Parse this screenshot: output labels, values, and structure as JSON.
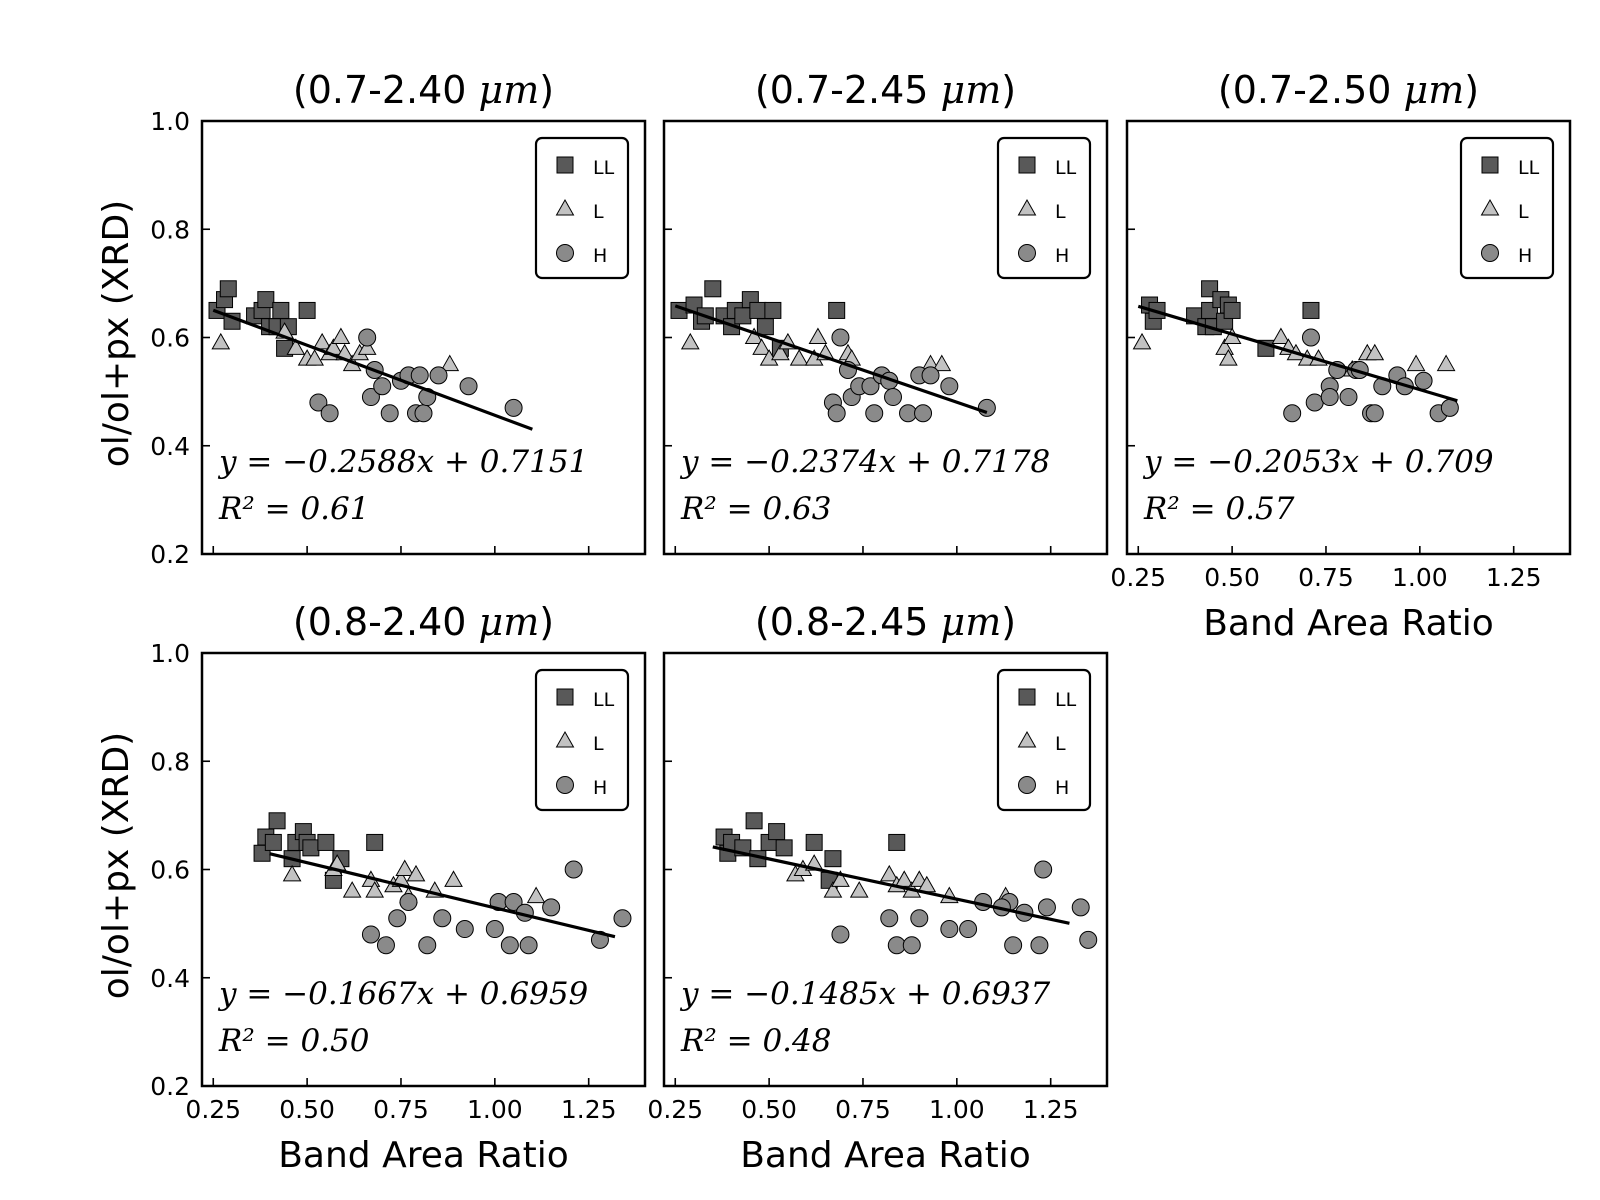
{
  "chart_data": [
    {
      "type": "scatter",
      "title": "(0.7-2.40 μm)",
      "title_range": "(0.7-2.40 ",
      "title_unit": "μm",
      "title_close": ")",
      "xlabel": "",
      "ylabel": "ol/ol+px (XRD)",
      "xlim": [
        0.22,
        1.4
      ],
      "ylim": [
        0.2,
        1.0
      ],
      "xticks": [
        0.25,
        0.5,
        0.75,
        1.0,
        1.25
      ],
      "xtick_labels": [],
      "yticks": [
        0.2,
        0.4,
        0.6,
        0.8,
        1.0
      ],
      "ytick_labels": [
        "0.2",
        "0.4",
        "0.6",
        "0.8",
        "1.0"
      ],
      "fit": {
        "slope": -0.2588,
        "intercept": 0.7151,
        "x_range": [
          0.25,
          1.1
        ]
      },
      "equation": "y = −0.2588x + 0.7151",
      "r2_label": "R² = 0.61",
      "legend": {
        "position": "top-right",
        "entries": [
          "LL",
          "L",
          "H"
        ]
      },
      "series": [
        {
          "name": "LL",
          "marker": "square",
          "color": "#595959",
          "x": [
            0.26,
            0.28,
            0.29,
            0.3,
            0.36,
            0.38,
            0.39,
            0.4,
            0.42,
            0.43,
            0.44,
            0.45,
            0.5
          ],
          "y": [
            0.65,
            0.67,
            0.69,
            0.63,
            0.64,
            0.65,
            0.67,
            0.62,
            0.62,
            0.65,
            0.58,
            0.62,
            0.65
          ]
        },
        {
          "name": "L",
          "marker": "triangle",
          "color": "#c2c2c2",
          "x": [
            0.27,
            0.44,
            0.47,
            0.5,
            0.52,
            0.54,
            0.56,
            0.57,
            0.59,
            0.6,
            0.62,
            0.64,
            0.66,
            0.88
          ],
          "y": [
            0.59,
            0.61,
            0.58,
            0.56,
            0.56,
            0.59,
            0.57,
            0.58,
            0.6,
            0.57,
            0.55,
            0.57,
            0.58,
            0.55
          ]
        },
        {
          "name": "H",
          "marker": "circle",
          "color": "#8a8a8a",
          "x": [
            0.53,
            0.56,
            0.66,
            0.67,
            0.68,
            0.7,
            0.72,
            0.75,
            0.77,
            0.79,
            0.8,
            0.81,
            0.82,
            0.85,
            0.93,
            1.05
          ],
          "y": [
            0.48,
            0.46,
            0.6,
            0.49,
            0.54,
            0.51,
            0.46,
            0.52,
            0.53,
            0.46,
            0.53,
            0.46,
            0.49,
            0.53,
            0.51,
            0.47
          ]
        }
      ]
    },
    {
      "type": "scatter",
      "title": "(0.7-2.45 μm)",
      "title_range": "(0.7-2.45 ",
      "title_unit": "μm",
      "title_close": ")",
      "xlabel": "",
      "ylabel": "",
      "xlim": [
        0.22,
        1.4
      ],
      "ylim": [
        0.2,
        1.0
      ],
      "xticks": [
        0.25,
        0.5,
        0.75,
        1.0,
        1.25
      ],
      "xtick_labels": [],
      "yticks": [
        0.2,
        0.4,
        0.6,
        0.8,
        1.0
      ],
      "ytick_labels": [],
      "fit": {
        "slope": -0.2374,
        "intercept": 0.7178,
        "x_range": [
          0.25,
          1.08
        ]
      },
      "equation": "y = −0.2374x + 0.7178",
      "r2_label": "R² = 0.63",
      "legend": {
        "position": "top-right",
        "entries": [
          "LL",
          "L",
          "H"
        ]
      },
      "series": [
        {
          "name": "LL",
          "marker": "square",
          "color": "#595959",
          "x": [
            0.26,
            0.3,
            0.32,
            0.33,
            0.35,
            0.38,
            0.4,
            0.41,
            0.43,
            0.45,
            0.47,
            0.49,
            0.51,
            0.53,
            0.68
          ],
          "y": [
            0.65,
            0.66,
            0.63,
            0.64,
            0.69,
            0.64,
            0.62,
            0.65,
            0.64,
            0.67,
            0.65,
            0.62,
            0.65,
            0.58,
            0.65
          ]
        },
        {
          "name": "L",
          "marker": "triangle",
          "color": "#c2c2c2",
          "x": [
            0.29,
            0.46,
            0.48,
            0.5,
            0.53,
            0.55,
            0.58,
            0.62,
            0.63,
            0.65,
            0.71,
            0.72,
            0.93,
            0.96
          ],
          "y": [
            0.59,
            0.6,
            0.58,
            0.56,
            0.57,
            0.59,
            0.56,
            0.56,
            0.6,
            0.57,
            0.57,
            0.56,
            0.55,
            0.55
          ]
        },
        {
          "name": "H",
          "marker": "circle",
          "color": "#8a8a8a",
          "x": [
            0.67,
            0.68,
            0.69,
            0.71,
            0.72,
            0.74,
            0.77,
            0.78,
            0.8,
            0.82,
            0.83,
            0.87,
            0.9,
            0.91,
            0.93,
            0.98,
            1.08
          ],
          "y": [
            0.48,
            0.46,
            0.6,
            0.54,
            0.49,
            0.51,
            0.51,
            0.46,
            0.53,
            0.52,
            0.49,
            0.46,
            0.53,
            0.46,
            0.53,
            0.51,
            0.47
          ]
        }
      ]
    },
    {
      "type": "scatter",
      "title": "(0.7-2.50 μm)",
      "title_range": "(0.7-2.50 ",
      "title_unit": "μm",
      "title_close": ")",
      "xlabel": "Band Area Ratio",
      "ylabel": "",
      "xlim": [
        0.22,
        1.4
      ],
      "ylim": [
        0.2,
        1.0
      ],
      "xticks": [
        0.25,
        0.5,
        0.75,
        1.0,
        1.25
      ],
      "xtick_labels": [
        "0.25",
        "0.50",
        "0.75",
        "1.00",
        "1.25"
      ],
      "yticks": [
        0.2,
        0.4,
        0.6,
        0.8,
        1.0
      ],
      "ytick_labels": [],
      "fit": {
        "slope": -0.2053,
        "intercept": 0.709,
        "x_range": [
          0.25,
          1.1
        ]
      },
      "equation": "y = −0.2053x + 0.709",
      "r2_label": "R² = 0.57",
      "legend": {
        "position": "top-right",
        "entries": [
          "LL",
          "L",
          "H"
        ]
      },
      "series": [
        {
          "name": "LL",
          "marker": "square",
          "color": "#595959",
          "x": [
            0.28,
            0.29,
            0.3,
            0.4,
            0.43,
            0.44,
            0.44,
            0.45,
            0.47,
            0.48,
            0.49,
            0.5,
            0.59,
            0.71
          ],
          "y": [
            0.66,
            0.63,
            0.65,
            0.64,
            0.62,
            0.69,
            0.65,
            0.62,
            0.67,
            0.63,
            0.66,
            0.65,
            0.58,
            0.65
          ]
        },
        {
          "name": "L",
          "marker": "triangle",
          "color": "#c2c2c2",
          "x": [
            0.26,
            0.48,
            0.49,
            0.5,
            0.63,
            0.65,
            0.67,
            0.7,
            0.73,
            0.82,
            0.86,
            0.88,
            0.99,
            1.07
          ],
          "y": [
            0.59,
            0.58,
            0.56,
            0.6,
            0.6,
            0.58,
            0.57,
            0.56,
            0.56,
            0.54,
            0.57,
            0.57,
            0.55,
            0.55
          ]
        },
        {
          "name": "H",
          "marker": "circle",
          "color": "#8a8a8a",
          "x": [
            0.66,
            0.71,
            0.72,
            0.76,
            0.76,
            0.78,
            0.81,
            0.83,
            0.84,
            0.87,
            0.88,
            0.9,
            0.94,
            0.96,
            1.01,
            1.05,
            1.08
          ],
          "y": [
            0.46,
            0.6,
            0.48,
            0.51,
            0.49,
            0.54,
            0.49,
            0.54,
            0.54,
            0.46,
            0.46,
            0.51,
            0.53,
            0.51,
            0.52,
            0.46,
            0.47
          ]
        }
      ]
    },
    {
      "type": "scatter",
      "title": "(0.8-2.40 μm)",
      "title_range": "(0.8-2.40 ",
      "title_unit": "μm",
      "title_close": ")",
      "xlabel": "Band Area Ratio",
      "ylabel": "ol/ol+px (XRD)",
      "xlim": [
        0.22,
        1.4
      ],
      "ylim": [
        0.2,
        1.0
      ],
      "xticks": [
        0.25,
        0.5,
        0.75,
        1.0,
        1.25
      ],
      "xtick_labels": [
        "0.25",
        "0.50",
        "0.75",
        "1.00",
        "1.25"
      ],
      "yticks": [
        0.2,
        0.4,
        0.6,
        0.8,
        1.0
      ],
      "ytick_labels": [
        "0.2",
        "0.4",
        "0.6",
        "0.8",
        "1.0"
      ],
      "fit": {
        "slope": -0.1667,
        "intercept": 0.6959,
        "x_range": [
          0.4,
          1.32
        ]
      },
      "equation": "y = −0.1667x + 0.6959",
      "r2_label": "R² = 0.50",
      "legend": {
        "position": "top-right",
        "entries": [
          "LL",
          "L",
          "H"
        ]
      },
      "series": [
        {
          "name": "LL",
          "marker": "square",
          "color": "#595959",
          "x": [
            0.38,
            0.39,
            0.41,
            0.42,
            0.46,
            0.47,
            0.49,
            0.5,
            0.51,
            0.55,
            0.57,
            0.59,
            0.68
          ],
          "y": [
            0.63,
            0.66,
            0.65,
            0.69,
            0.62,
            0.65,
            0.67,
            0.65,
            0.64,
            0.65,
            0.58,
            0.62,
            0.65
          ]
        },
        {
          "name": "L",
          "marker": "triangle",
          "color": "#c2c2c2",
          "x": [
            0.46,
            0.57,
            0.58,
            0.62,
            0.67,
            0.68,
            0.73,
            0.75,
            0.76,
            0.77,
            0.79,
            0.84,
            0.89,
            1.11
          ],
          "y": [
            0.59,
            0.6,
            0.61,
            0.56,
            0.58,
            0.56,
            0.57,
            0.58,
            0.6,
            0.55,
            0.59,
            0.56,
            0.58,
            0.55
          ]
        },
        {
          "name": "H",
          "marker": "circle",
          "color": "#8a8a8a",
          "x": [
            0.67,
            0.71,
            0.74,
            0.77,
            0.82,
            0.86,
            0.92,
            1.0,
            1.01,
            1.04,
            1.05,
            1.08,
            1.09,
            1.15,
            1.21,
            1.28,
            1.34
          ],
          "y": [
            0.48,
            0.46,
            0.51,
            0.54,
            0.46,
            0.51,
            0.49,
            0.49,
            0.54,
            0.46,
            0.54,
            0.52,
            0.46,
            0.53,
            0.6,
            0.47,
            0.51
          ]
        }
      ]
    },
    {
      "type": "scatter",
      "title": "(0.8-2.45 μm)",
      "title_range": "(0.8-2.45 ",
      "title_unit": "μm",
      "title_close": ")",
      "xlabel": "Band Area Ratio",
      "ylabel": "",
      "xlim": [
        0.22,
        1.4
      ],
      "ylim": [
        0.2,
        1.0
      ],
      "xticks": [
        0.25,
        0.5,
        0.75,
        1.0,
        1.25
      ],
      "xtick_labels": [
        "0.25",
        "0.50",
        "0.75",
        "1.00",
        "1.25"
      ],
      "yticks": [
        0.2,
        0.4,
        0.6,
        0.8,
        1.0
      ],
      "ytick_labels": [],
      "fit": {
        "slope": -0.1485,
        "intercept": 0.6937,
        "x_range": [
          0.35,
          1.3
        ]
      },
      "equation": "y = −0.1485x + 0.6937",
      "r2_label": "R² = 0.48",
      "legend": {
        "position": "top-right",
        "entries": [
          "LL",
          "L",
          "H"
        ]
      },
      "series": [
        {
          "name": "LL",
          "marker": "square",
          "color": "#595959",
          "x": [
            0.38,
            0.39,
            0.4,
            0.43,
            0.46,
            0.47,
            0.5,
            0.52,
            0.54,
            0.62,
            0.66,
            0.67,
            0.84
          ],
          "y": [
            0.66,
            0.63,
            0.65,
            0.64,
            0.69,
            0.62,
            0.65,
            0.67,
            0.64,
            0.65,
            0.58,
            0.62,
            0.65
          ]
        },
        {
          "name": "L",
          "marker": "triangle",
          "color": "#c2c2c2",
          "x": [
            0.57,
            0.59,
            0.62,
            0.67,
            0.69,
            0.74,
            0.82,
            0.84,
            0.86,
            0.88,
            0.9,
            0.92,
            0.98,
            1.13
          ],
          "y": [
            0.59,
            0.6,
            0.61,
            0.56,
            0.58,
            0.56,
            0.59,
            0.57,
            0.58,
            0.56,
            0.58,
            0.57,
            0.55,
            0.55
          ]
        },
        {
          "name": "H",
          "marker": "circle",
          "color": "#8a8a8a",
          "x": [
            0.69,
            0.82,
            0.84,
            0.88,
            0.9,
            0.98,
            1.03,
            1.07,
            1.14,
            1.15,
            1.18,
            1.22,
            1.23,
            1.24,
            1.33,
            1.35,
            1.12
          ],
          "y": [
            0.48,
            0.51,
            0.46,
            0.46,
            0.51,
            0.49,
            0.49,
            0.54,
            0.54,
            0.46,
            0.52,
            0.46,
            0.6,
            0.53,
            0.53,
            0.47,
            0.53
          ]
        }
      ]
    }
  ]
}
